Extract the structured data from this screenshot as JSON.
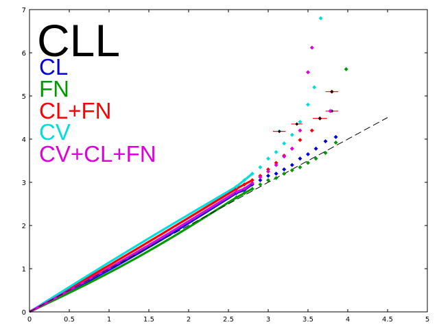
{
  "chart_data": {
    "type": "scatter",
    "title": "CLL",
    "xlim": [
      0,
      5
    ],
    "ylim": [
      0,
      7
    ],
    "x_ticks": [
      "0",
      "0.5",
      "1",
      "1.5",
      "2",
      "2.5",
      "3",
      "3.5",
      "4",
      "4.5",
      "5"
    ],
    "y_ticks": [
      "0",
      "1",
      "2",
      "3",
      "4",
      "5",
      "6",
      "7"
    ],
    "grid": false,
    "legend_placement": "top-left",
    "reference_line": {
      "style": "dashed",
      "color": "#000000",
      "x": [
        0,
        4.5
      ],
      "y": [
        0,
        4.5
      ]
    },
    "series": [
      {
        "name": "CL",
        "color": "#0000dd",
        "points": [
          [
            2.6,
            2.75
          ],
          [
            2.7,
            2.82
          ],
          [
            2.8,
            2.95
          ],
          [
            2.9,
            3.05
          ],
          [
            3.0,
            3.15
          ],
          [
            3.1,
            3.2
          ],
          [
            3.2,
            3.3
          ],
          [
            3.3,
            3.4
          ],
          [
            3.4,
            3.55
          ],
          [
            3.5,
            3.65
          ],
          [
            3.6,
            3.78
          ],
          [
            3.72,
            3.95
          ],
          [
            3.85,
            4.05
          ]
        ],
        "error_bars": []
      },
      {
        "name": "FN",
        "color": "#009900",
        "points": [
          [
            2.6,
            2.65
          ],
          [
            2.7,
            2.75
          ],
          [
            2.8,
            2.85
          ],
          [
            2.9,
            2.95
          ],
          [
            3.0,
            3.05
          ],
          [
            3.1,
            3.1
          ],
          [
            3.2,
            3.2
          ],
          [
            3.3,
            3.28
          ],
          [
            3.4,
            3.35
          ],
          [
            3.5,
            3.45
          ],
          [
            3.6,
            3.55
          ],
          [
            3.72,
            3.68
          ],
          [
            3.85,
            3.92
          ],
          [
            3.98,
            5.62
          ]
        ],
        "error_bars": []
      },
      {
        "name": "CL+FN",
        "color": "#ff0000",
        "points": [
          [
            2.6,
            2.85
          ],
          [
            2.7,
            2.95
          ],
          [
            2.8,
            3.05
          ],
          [
            2.9,
            3.15
          ],
          [
            3.0,
            3.3
          ],
          [
            3.1,
            3.45
          ],
          [
            3.2,
            3.62
          ],
          [
            3.3,
            3.78
          ],
          [
            3.4,
            3.98
          ],
          [
            3.55,
            4.2
          ],
          [
            3.65,
            4.48
          ],
          [
            3.8,
            5.1
          ]
        ],
        "error_bars": [
          [
            3.14,
            4.18,
            0.08
          ],
          [
            3.36,
            4.35,
            0.07
          ],
          [
            3.65,
            4.48,
            0.09
          ],
          [
            3.8,
            5.1,
            0.08
          ],
          [
            3.8,
            4.65,
            0.08
          ]
        ]
      },
      {
        "name": "CV",
        "color": "#00dddd",
        "points": [
          [
            2.6,
            2.9
          ],
          [
            2.7,
            3.05
          ],
          [
            2.8,
            3.2
          ],
          [
            2.9,
            3.35
          ],
          [
            3.0,
            3.55
          ],
          [
            3.1,
            3.7
          ],
          [
            3.2,
            3.9
          ],
          [
            3.3,
            4.1
          ],
          [
            3.4,
            4.4
          ],
          [
            3.5,
            4.8
          ],
          [
            3.58,
            5.2
          ],
          [
            3.66,
            6.8
          ]
        ],
        "error_bars": []
      },
      {
        "name": "CV+CL+FN",
        "color": "#dd00dd",
        "points": [
          [
            2.6,
            2.78
          ],
          [
            2.7,
            2.85
          ],
          [
            2.8,
            2.98
          ],
          [
            2.9,
            3.12
          ],
          [
            3.0,
            3.25
          ],
          [
            3.1,
            3.4
          ],
          [
            3.2,
            3.6
          ],
          [
            3.3,
            3.78
          ],
          [
            3.4,
            4.2
          ],
          [
            3.5,
            5.55
          ],
          [
            3.55,
            6.12
          ],
          [
            3.78,
            4.65
          ]
        ],
        "error_bars": []
      }
    ]
  }
}
